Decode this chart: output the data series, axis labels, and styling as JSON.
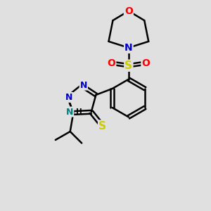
{
  "bg_color": "#e0e0e0",
  "atom_colors": {
    "C": "#000000",
    "N": "#0000cc",
    "N_teal": "#008080",
    "O": "#ff0000",
    "S": "#cccc00",
    "H": "#000000"
  },
  "bond_color": "#000000",
  "bond_width": 1.8,
  "figsize": [
    3.0,
    3.0
  ],
  "dpi": 100
}
